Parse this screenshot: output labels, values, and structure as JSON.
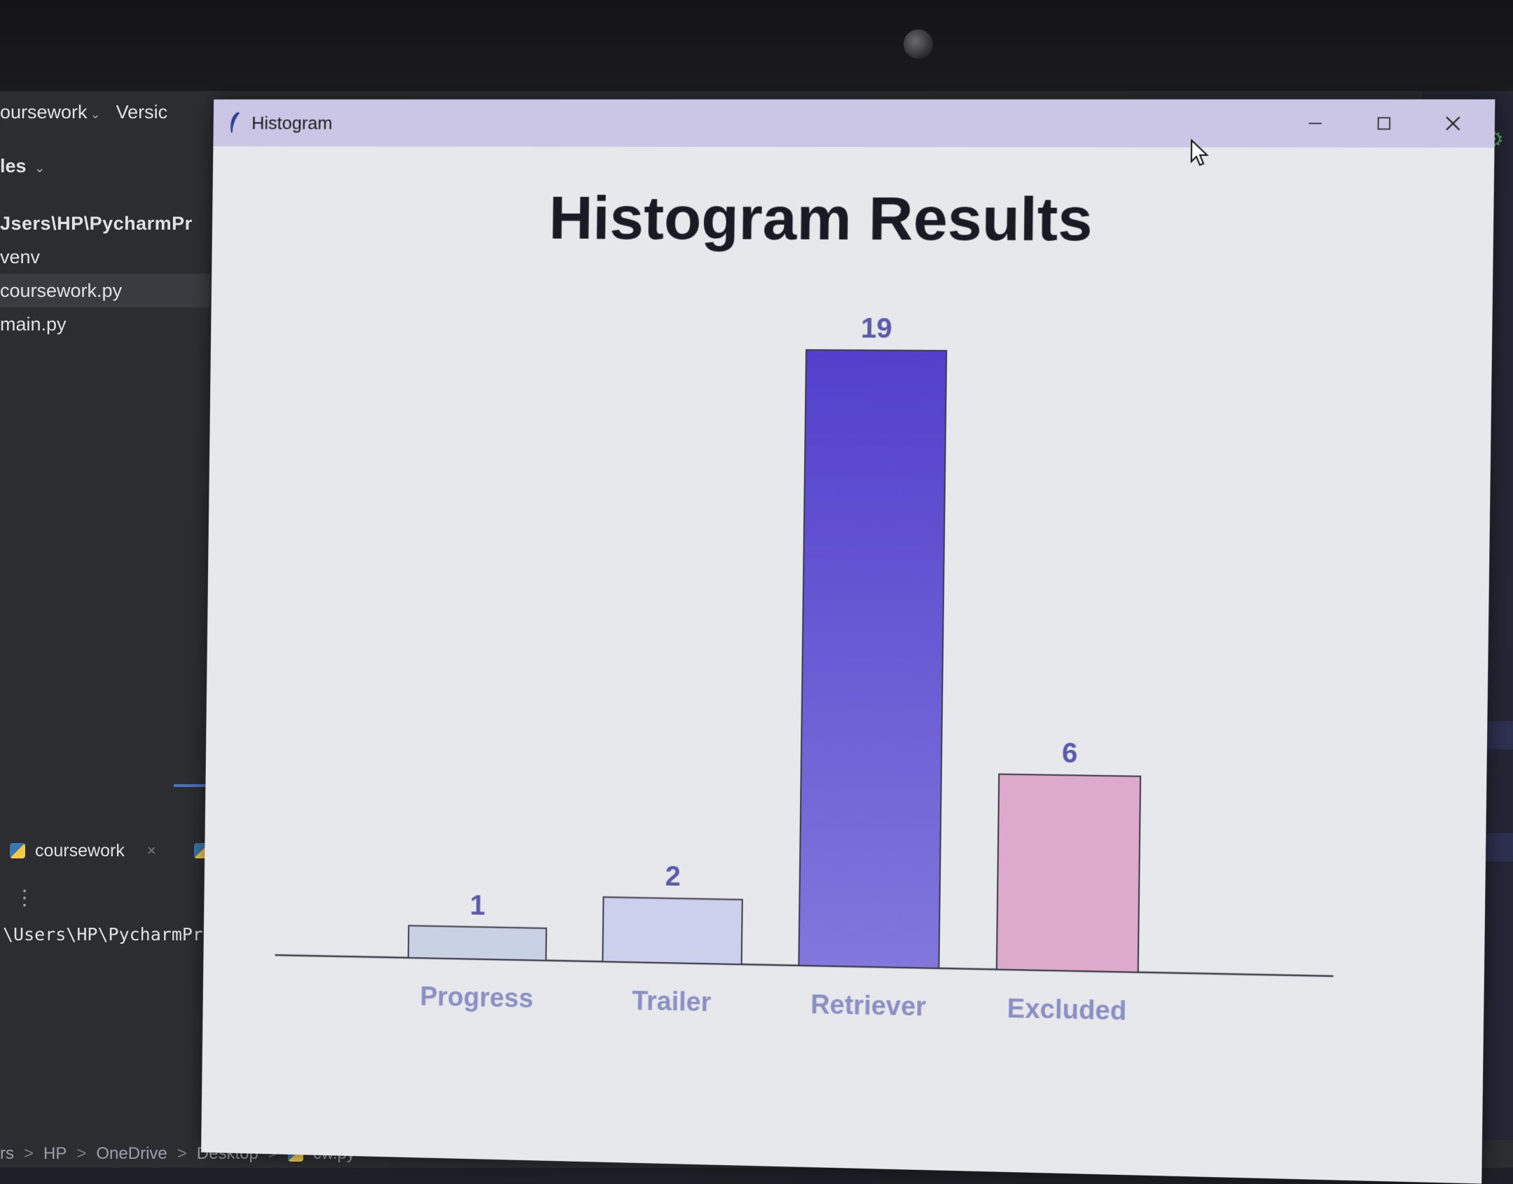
{
  "ide": {
    "project_label": "oursework",
    "version_label": "Versic",
    "files_label": "les",
    "tree": [
      {
        "label": "Jsers\\HP\\PycharmPr"
      },
      {
        "label": "venv"
      },
      {
        "label": "coursework.py"
      },
      {
        "label": "main.py"
      }
    ],
    "run_tab_label": "coursework",
    "run_tab_close": "×",
    "terminal_path": "\\Users\\HP\\PycharmPro",
    "breadcrumbs": [
      "rs",
      "HP",
      "OneDrive",
      "Desktop",
      "cw.py"
    ],
    "breadcrumb_sep": ">"
  },
  "window": {
    "title": "Histogram",
    "icon": "feather-icon",
    "controls": {
      "minimize": "─",
      "maximize": "☐",
      "close": "✕"
    }
  },
  "chart_data": {
    "type": "bar",
    "title": "Histogram Results",
    "categories": [
      "Progress",
      "Trailer",
      "Retriever",
      "Excluded"
    ],
    "values": [
      1,
      2,
      19,
      6
    ],
    "value_labels": [
      "1",
      "2",
      "19",
      "6"
    ],
    "colors": [
      [
        "#c9d2e4",
        "#c9d2e4"
      ],
      [
        "#cdd0ec",
        "#cdd0ec"
      ],
      [
        "#5240cc",
        "#8177dc"
      ],
      [
        "#ddaacb",
        "#ddaacb"
      ]
    ],
    "label_color": "#8c8fc4",
    "value_label_color": "#5a5aa8",
    "title_color": "#1a1a24",
    "baseline_color": "#3c3c48",
    "ylim": [
      0,
      19
    ],
    "grid": false,
    "legend": "none"
  }
}
